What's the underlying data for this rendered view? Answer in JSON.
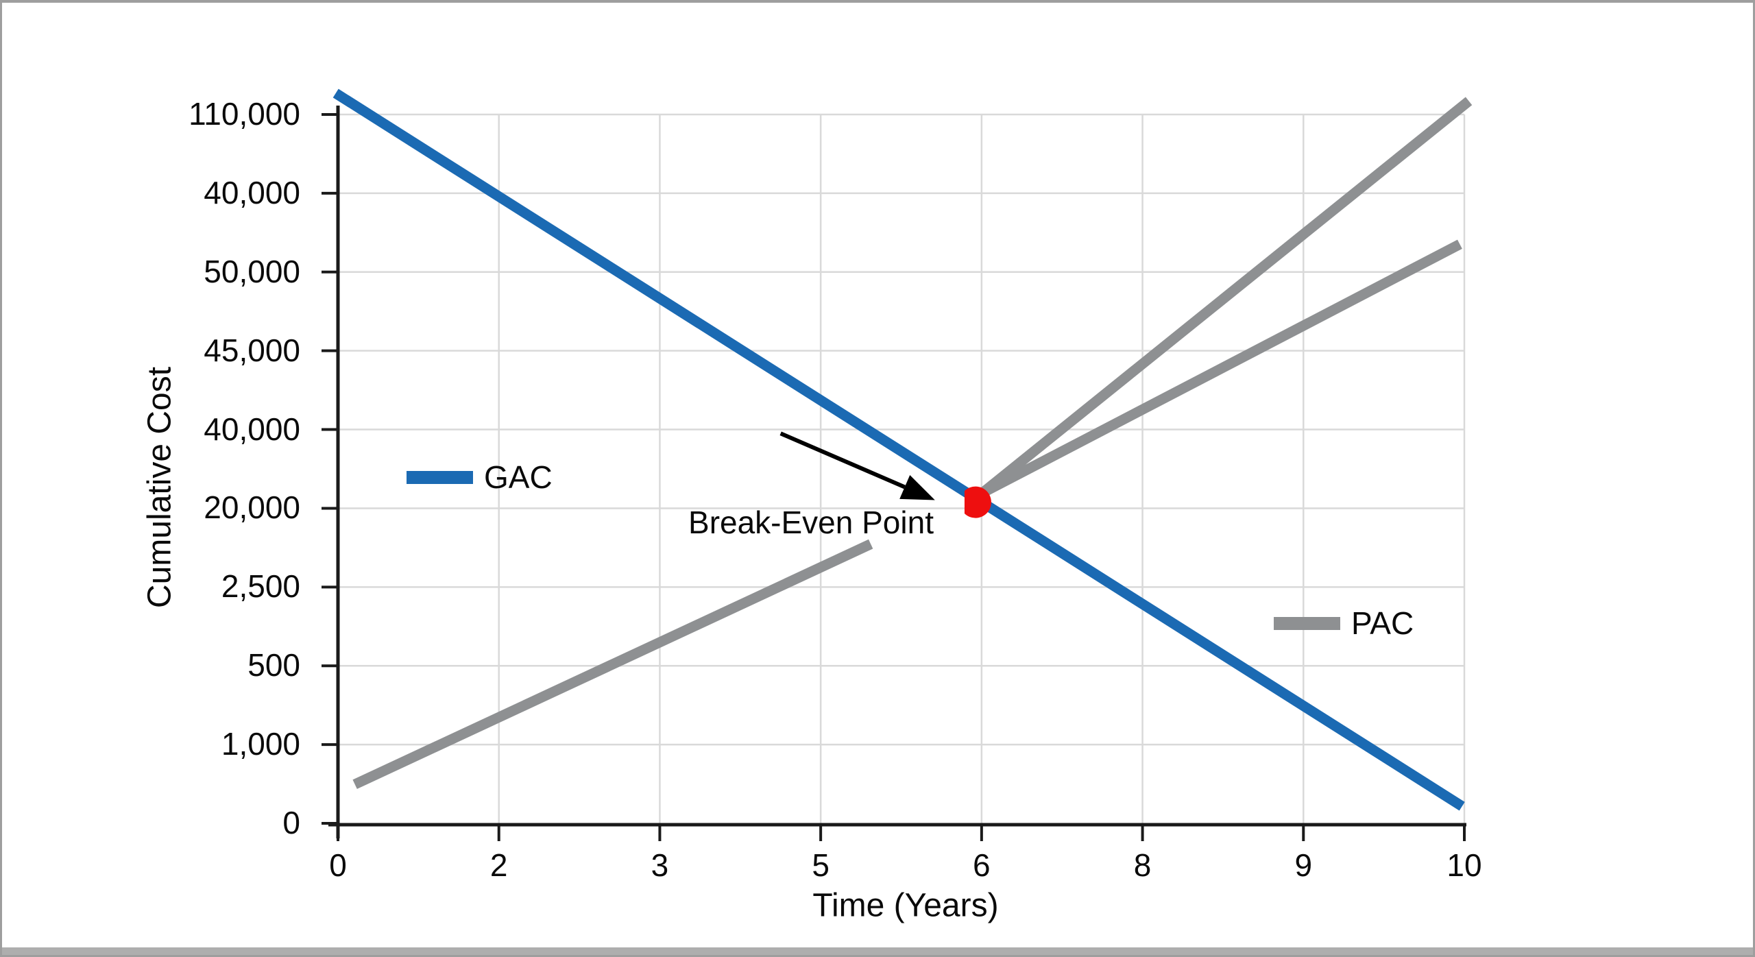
{
  "chart_data": {
    "type": "line",
    "title": "",
    "xlabel": "Time (Years)",
    "ylabel": "Cumulative Cost",
    "x_tick_labels": [
      "0",
      "2",
      "3",
      "5",
      "6",
      "8",
      "9",
      "10"
    ],
    "y_tick_labels_top_to_bottom": [
      "110,000",
      "40,000",
      "50,000",
      "45,000",
      "40,000",
      "20,000",
      "2,500",
      "500",
      "1,000",
      "0"
    ],
    "grid": "on",
    "axis_note": "Tick label sequences are exactly as rendered in the source image (non-monotonic). Series geometry is stored as plot-area fractions: x 0=left axis to 1=last tick, y 0=bottom axis to 1=top tick.",
    "series": [
      {
        "name": "GAC",
        "color": "#1b6ab3",
        "role": "straight declining line, upper-left to lower-right",
        "segments": [
          [
            [
              -0.002,
              1.03
            ],
            [
              0.998,
              0.024
            ]
          ]
        ]
      },
      {
        "name": "PAC",
        "color": "#8e9092",
        "role": "rising line that meets GAC at break-even point, then splits into two rising branches",
        "segments": [
          [
            [
              0.015,
              0.055
            ],
            [
              0.473,
              0.394
            ]
          ],
          [
            [
              0.572,
              0.466
            ],
            [
              1.004,
              1.019
            ]
          ],
          [
            [
              0.572,
              0.466
            ],
            [
              0.996,
              0.817
            ]
          ]
        ]
      }
    ],
    "break_even_point": {
      "color": "#ee0f0f",
      "x_frac": 0.566,
      "y_frac": 0.453,
      "at_x_tick": "6",
      "marker": "red dot with flat left edge"
    },
    "annotation": {
      "text": "Break-Even Point",
      "arrow_color": "#000000",
      "arrow_tail": [
        0.393,
        0.55
      ],
      "arrow_tip": [
        0.53,
        0.456
      ]
    },
    "legend": [
      {
        "label": "GAC",
        "color": "#1b6ab3",
        "position": "inside plot, left middle"
      },
      {
        "label": "PAC",
        "color": "#8e9092",
        "position": "inside plot, right lower"
      }
    ],
    "axis_ranges": {
      "x_ticks_count": 8,
      "y_ticks_count": 10
    }
  },
  "figure": {
    "background": "#ffffff",
    "border_color": "#9e9e9e",
    "bottom_strip_color": "#aeaeae",
    "gridline_color": "#d9d9d9",
    "axis_color": "#1a1a1a",
    "text_color": "#0a0a0a"
  }
}
